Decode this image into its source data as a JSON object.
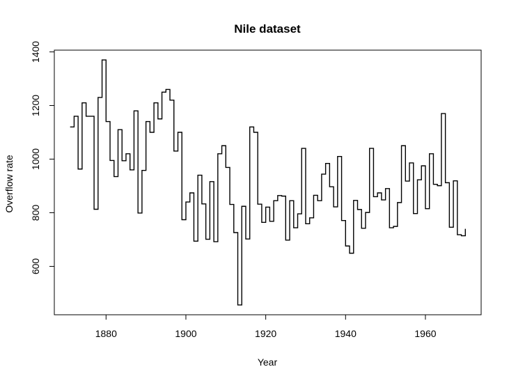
{
  "chart_data": {
    "type": "line",
    "line_style": "step",
    "title": "Nile dataset",
    "xlabel": "Year",
    "ylabel": "Overflow rate",
    "xlim": [
      1871,
      1970
    ],
    "ylim": [
      456,
      1370
    ],
    "x_ticks": [
      1880,
      1900,
      1920,
      1940,
      1960
    ],
    "y_ticks": [
      600,
      800,
      1000,
      1200,
      1400
    ],
    "box": true,
    "grid": false,
    "legend": "none",
    "colors": {
      "line": "#000000",
      "axis": "#000000",
      "background": "#ffffff"
    },
    "x": [
      1871,
      1872,
      1873,
      1874,
      1875,
      1876,
      1877,
      1878,
      1879,
      1880,
      1881,
      1882,
      1883,
      1884,
      1885,
      1886,
      1887,
      1888,
      1889,
      1890,
      1891,
      1892,
      1893,
      1894,
      1895,
      1896,
      1897,
      1898,
      1899,
      1900,
      1901,
      1902,
      1903,
      1904,
      1905,
      1906,
      1907,
      1908,
      1909,
      1910,
      1911,
      1912,
      1913,
      1914,
      1915,
      1916,
      1917,
      1918,
      1919,
      1920,
      1921,
      1922,
      1923,
      1924,
      1925,
      1926,
      1927,
      1928,
      1929,
      1930,
      1931,
      1932,
      1933,
      1934,
      1935,
      1936,
      1937,
      1938,
      1939,
      1940,
      1941,
      1942,
      1943,
      1944,
      1945,
      1946,
      1947,
      1948,
      1949,
      1950,
      1951,
      1952,
      1953,
      1954,
      1955,
      1956,
      1957,
      1958,
      1959,
      1960,
      1961,
      1962,
      1963,
      1964,
      1965,
      1966,
      1967,
      1968,
      1969,
      1970
    ],
    "values": [
      1120,
      1160,
      963,
      1210,
      1160,
      1160,
      813,
      1230,
      1370,
      1140,
      995,
      935,
      1110,
      994,
      1020,
      960,
      1180,
      799,
      958,
      1140,
      1100,
      1210,
      1150,
      1250,
      1260,
      1220,
      1030,
      1100,
      774,
      840,
      874,
      694,
      940,
      833,
      701,
      916,
      692,
      1020,
      1050,
      969,
      831,
      726,
      456,
      824,
      702,
      1120,
      1100,
      832,
      764,
      821,
      768,
      845,
      864,
      862,
      698,
      845,
      744,
      796,
      1040,
      759,
      781,
      865,
      845,
      944,
      984,
      897,
      822,
      1010,
      771,
      676,
      649,
      846,
      812,
      742,
      801,
      1040,
      860,
      874,
      848,
      890,
      744,
      749,
      838,
      1050,
      918,
      986,
      797,
      923,
      975,
      815,
      1020,
      906,
      901,
      1170,
      912,
      746,
      919,
      718,
      714,
      740
    ]
  }
}
